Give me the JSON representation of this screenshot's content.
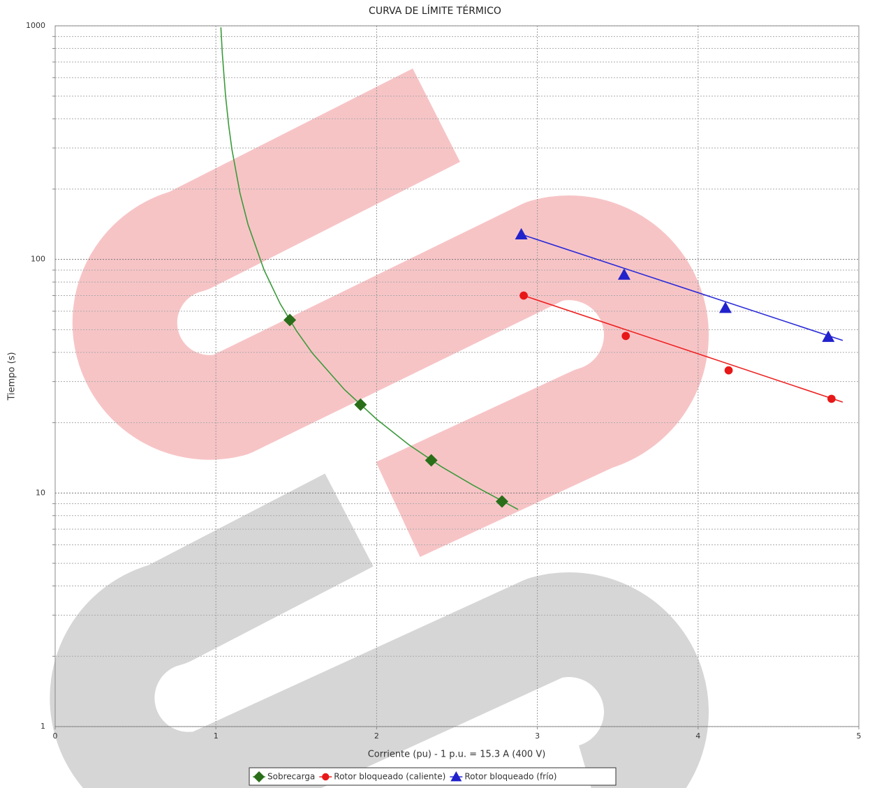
{
  "chart_data": {
    "type": "line",
    "title": "CURVA DE LÍMITE TÉRMICO",
    "xlabel": "Corriente (pu) - 1 p.u. = 15.3 A (400 V)",
    "ylabel": "Tiempo (s)",
    "xlim": [
      0,
      5
    ],
    "xticks": [
      0,
      1,
      2,
      3,
      4,
      5
    ],
    "ylim": [
      1,
      1000
    ],
    "yticks": [
      1,
      10,
      100,
      1000
    ],
    "minor_yticks": [
      2,
      3,
      4,
      5,
      6,
      7,
      8,
      9,
      20,
      30,
      40,
      50,
      60,
      70,
      80,
      90,
      200,
      300,
      400,
      500,
      600,
      700,
      800,
      900
    ],
    "ylog": true,
    "grid": true,
    "legend": "bottom",
    "series": [
      {
        "name": "Sobrecarga",
        "color": "#3a9a3a",
        "marker_color": "#2a6e1a",
        "marker": "diamond",
        "x": [
          1.031,
          1.04,
          1.06,
          1.08,
          1.1,
          1.15,
          1.2,
          1.3,
          1.4,
          1.5,
          1.6,
          1.8,
          2.0,
          2.2,
          2.4,
          2.6,
          2.88
        ],
        "values": [
          985,
          760,
          502,
          373,
          295,
          192,
          141,
          90,
          64.6,
          49.6,
          39.7,
          27.7,
          20.7,
          16.1,
          13.0,
          10.8,
          8.5
        ],
        "markers": {
          "x": [
            1.46,
            1.9,
            2.34,
            2.78
          ],
          "values": [
            55,
            23.9,
            13.8,
            9.2
          ]
        }
      },
      {
        "name": "Rotor bloqueado (caliente)",
        "color": "#ee2222",
        "marker_color": "#e81818",
        "marker": "circle",
        "x": [
          2.915,
          4.9
        ],
        "values": [
          70,
          24.5
        ],
        "markers": {
          "x": [
            2.915,
            3.55,
            4.19,
            4.83
          ],
          "values": [
            70,
            47,
            33.5,
            25.3
          ]
        }
      },
      {
        "name": "Rotor bloqueado (frío)",
        "color": "#2a2ad8",
        "marker_color": "#2222cc",
        "marker": "triangle",
        "x": [
          2.9,
          4.9
        ],
        "values": [
          128,
          45
        ],
        "markers": {
          "x": [
            2.9,
            3.54,
            4.17,
            4.81
          ],
          "values": [
            128,
            86,
            62,
            46.6
          ]
        }
      }
    ]
  }
}
